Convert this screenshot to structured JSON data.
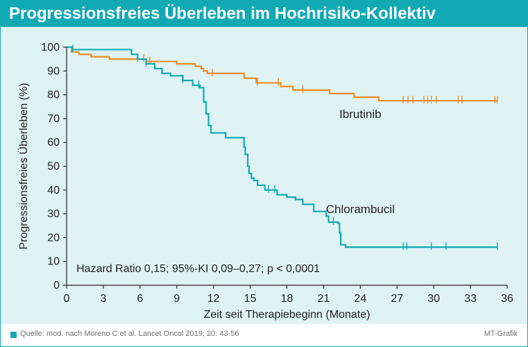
{
  "title": "Progressionsfreies Überleben im Hochrisiko-Kollektiv",
  "footer": {
    "source": "Quelle: mod. nach Moreno C et al. Lancet Oncol 2019; 20: 43-56",
    "credit": "MT-Grafik"
  },
  "colors": {
    "accent": "#11a9b4",
    "plot_background": "#dff3f4",
    "ibrutinib": "#f08c1e",
    "chlorambucil": "#11a9b4"
  },
  "chart_data": {
    "type": "line",
    "subtype": "kaplan-meier",
    "xlabel": "Zeit seit Therapiebeginn (Monate)",
    "ylabel": "Progressionsfreies Überleben (%)",
    "xlim": [
      0,
      36
    ],
    "ylim": [
      0,
      100
    ],
    "xticks": [
      0,
      3,
      6,
      9,
      12,
      15,
      18,
      21,
      24,
      27,
      30,
      33,
      36
    ],
    "yticks": [
      0,
      10,
      20,
      30,
      40,
      50,
      60,
      70,
      80,
      90,
      100
    ],
    "grid": false,
    "annotation": "Hazard Ratio 0,15; 95%-KI 0,09–0,27; p < 0,0001",
    "series": [
      {
        "name": "Ibrutinib",
        "color": "#f08c1e",
        "steps": [
          [
            0,
            100
          ],
          [
            0.4,
            98
          ],
          [
            1,
            97
          ],
          [
            2,
            96
          ],
          [
            3.5,
            95
          ],
          [
            6.5,
            94
          ],
          [
            9,
            93
          ],
          [
            10.5,
            92
          ],
          [
            11,
            91
          ],
          [
            11.2,
            90
          ],
          [
            11.5,
            89
          ],
          [
            14.5,
            87
          ],
          [
            15.5,
            85
          ],
          [
            17.5,
            83.5
          ],
          [
            18.5,
            82
          ],
          [
            21.5,
            80.5
          ],
          [
            23.5,
            79
          ],
          [
            25.5,
            77.5
          ],
          [
            35.2,
            77.5
          ]
        ],
        "censor_x": [
          5.8,
          6.3,
          6.8,
          11.9,
          15.6,
          17.3,
          19.3,
          27.5,
          27.9,
          28.3,
          29.2,
          29.5,
          29.8,
          30.2,
          32,
          32.3,
          35,
          35.2
        ],
        "label_at": [
          24,
          72
        ]
      },
      {
        "name": "Chlorambucil",
        "color": "#11a9b4",
        "steps": [
          [
            0,
            100
          ],
          [
            0.5,
            99
          ],
          [
            1.5,
            99
          ],
          [
            5.3,
            97
          ],
          [
            5.8,
            95
          ],
          [
            6.5,
            93
          ],
          [
            7.2,
            91
          ],
          [
            7.8,
            89
          ],
          [
            8.5,
            88
          ],
          [
            9.5,
            86
          ],
          [
            10.3,
            84
          ],
          [
            10.9,
            83
          ],
          [
            11.2,
            77
          ],
          [
            11.4,
            72
          ],
          [
            11.6,
            67
          ],
          [
            11.8,
            64
          ],
          [
            13,
            62
          ],
          [
            14.5,
            58
          ],
          [
            14.6,
            55
          ],
          [
            14.8,
            50
          ],
          [
            14.9,
            47
          ],
          [
            15.1,
            45
          ],
          [
            15.3,
            44
          ],
          [
            15.6,
            42
          ],
          [
            16.2,
            40
          ],
          [
            17.2,
            38
          ],
          [
            18,
            37
          ],
          [
            18.7,
            36
          ],
          [
            19.3,
            34
          ],
          [
            20.2,
            31
          ],
          [
            21.2,
            29
          ],
          [
            21.4,
            26.5
          ],
          [
            22.2,
            26
          ],
          [
            22.3,
            22
          ],
          [
            22.4,
            17
          ],
          [
            22.8,
            16
          ],
          [
            35.2,
            16
          ]
        ],
        "censor_x": [
          0.5,
          6.5,
          9.5,
          10.8,
          16.5,
          17,
          21.8,
          27.5,
          27.8,
          29.8,
          31,
          35.2
        ],
        "label_at": [
          24,
          32
        ]
      }
    ]
  }
}
